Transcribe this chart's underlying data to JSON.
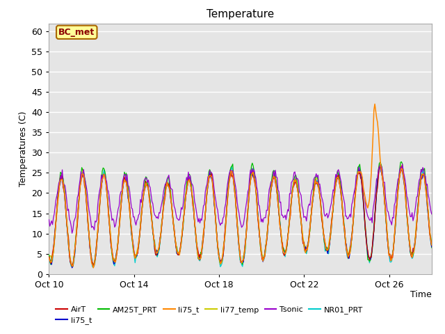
{
  "title": "Temperature",
  "ylabel": "Temperatures (C)",
  "xlabel": "Time",
  "ylim": [
    0,
    62
  ],
  "yticks": [
    0,
    5,
    10,
    15,
    20,
    25,
    30,
    35,
    40,
    45,
    50,
    55,
    60
  ],
  "bg_color": "#e5e5e5",
  "fig_color": "#ffffff",
  "annotation_label": "BC_met",
  "annotation_bg": "#ffff99",
  "annotation_border": "#aa6600",
  "annotation_text_color": "#8b0000",
  "series_colors": {
    "AirT": "#cc0000",
    "li75_t_blue": "#0000cc",
    "AM25T_PRT": "#00bb00",
    "li75_t_orange": "#ff8800",
    "li77_temp": "#cccc00",
    "Tsonic": "#9900cc",
    "NR01_PRT": "#00cccc"
  },
  "x_tick_labels": [
    "Oct 10",
    "Oct 14",
    "Oct 18",
    "Oct 22",
    "Oct 26"
  ],
  "x_tick_positions": [
    0,
    4,
    8,
    12,
    16
  ],
  "num_days": 18,
  "samples_per_day": 24
}
